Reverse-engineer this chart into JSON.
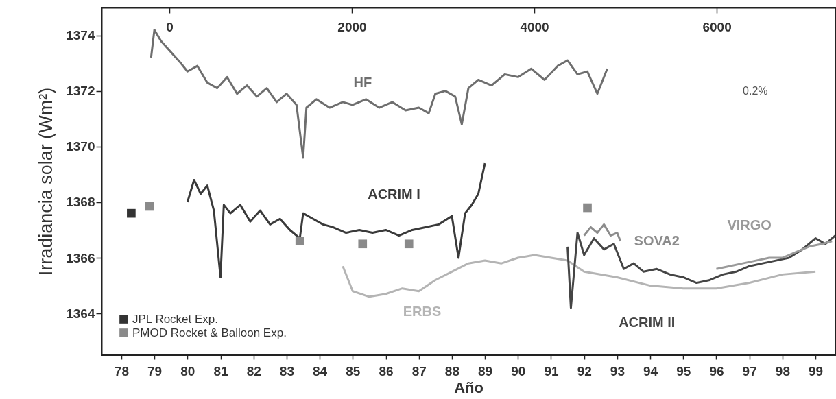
{
  "chart_data": {
    "type": "line",
    "xlabel": "Año",
    "ylabel": "Irradiancia solar (Wm²)",
    "xlim": [
      77.4,
      99.6
    ],
    "xticks": [
      78,
      79,
      80,
      81,
      82,
      83,
      84,
      85,
      86,
      87,
      88,
      89,
      90,
      91,
      92,
      93,
      94,
      95,
      96,
      97,
      98,
      99
    ],
    "x2lim": [
      -744,
      7300
    ],
    "x2ticks": [
      0,
      2000,
      4000,
      6000
    ],
    "ylim": [
      1362.5,
      1375
    ],
    "yticks": [
      1364,
      1366,
      1368,
      1370,
      1372,
      1374
    ],
    "grid": false,
    "legend": "bottom left",
    "line_style": "solid",
    "annotations": [
      "0.2%"
    ],
    "series": [
      {
        "name": "HF",
        "color": "#6e6e6e",
        "x": [
          78.9,
          79.0,
          79.2,
          79.5,
          79.8,
          80.0,
          80.3,
          80.6,
          80.9,
          81.2,
          81.5,
          81.8,
          82.1,
          82.4,
          82.7,
          83.0,
          83.3,
          83.5,
          83.6,
          83.9,
          84.3,
          84.7,
          85.0,
          85.4,
          85.8,
          86.2,
          86.6,
          87.0,
          87.3,
          87.5,
          87.8,
          88.1,
          88.3,
          88.5,
          88.8,
          89.2,
          89.6,
          90.0,
          90.4,
          90.8,
          91.2,
          91.5,
          91.8,
          92.1,
          92.4,
          92.7
        ],
        "values": [
          1373.2,
          1374.2,
          1373.8,
          1373.4,
          1373.0,
          1372.7,
          1372.9,
          1372.3,
          1372.1,
          1372.5,
          1371.9,
          1372.2,
          1371.8,
          1372.1,
          1371.6,
          1371.9,
          1371.5,
          1369.6,
          1371.4,
          1371.7,
          1371.4,
          1371.6,
          1371.5,
          1371.7,
          1371.4,
          1371.6,
          1371.3,
          1371.4,
          1371.2,
          1371.9,
          1372.0,
          1371.8,
          1370.8,
          1372.1,
          1372.4,
          1372.2,
          1372.6,
          1372.5,
          1372.8,
          1372.4,
          1372.9,
          1373.1,
          1372.6,
          1372.7,
          1371.9,
          1372.8
        ]
      },
      {
        "name": "ACRIM I",
        "color": "#3a3a3a",
        "x": [
          80.0,
          80.2,
          80.4,
          80.6,
          80.8,
          81.0,
          81.1,
          81.3,
          81.6,
          81.9,
          82.2,
          82.5,
          82.8,
          83.1,
          83.4,
          83.5,
          83.8,
          84.1,
          84.4,
          84.8,
          85.2,
          85.6,
          86.0,
          86.4,
          86.8,
          87.2,
          87.6,
          88.0,
          88.2,
          88.4,
          88.6,
          88.8,
          89.0
        ],
        "values": [
          1368.0,
          1368.8,
          1368.3,
          1368.6,
          1367.7,
          1365.3,
          1367.9,
          1367.6,
          1367.9,
          1367.3,
          1367.7,
          1367.2,
          1367.4,
          1367.0,
          1366.7,
          1367.6,
          1367.4,
          1367.2,
          1367.1,
          1366.9,
          1367.0,
          1366.9,
          1367.0,
          1366.8,
          1367.0,
          1367.1,
          1367.2,
          1367.5,
          1366.0,
          1367.6,
          1367.9,
          1368.3,
          1369.4
        ]
      },
      {
        "name": "ERBS",
        "color": "#b4b4b4",
        "x": [
          84.7,
          85.0,
          85.5,
          86.0,
          86.5,
          87.0,
          87.5,
          88.0,
          88.5,
          89.0,
          89.5,
          90.0,
          90.5,
          91.0,
          91.5,
          92.0,
          93.0,
          94.0,
          95.0,
          96.0,
          97.0,
          98.0,
          99.0
        ],
        "values": [
          1365.7,
          1364.8,
          1364.6,
          1364.7,
          1364.9,
          1364.8,
          1365.2,
          1365.5,
          1365.8,
          1365.9,
          1365.8,
          1366.0,
          1366.1,
          1366.0,
          1365.9,
          1365.5,
          1365.3,
          1365.0,
          1364.9,
          1364.9,
          1365.1,
          1365.4,
          1365.5
        ]
      },
      {
        "name": "ACRIM II",
        "color": "#454545",
        "x": [
          91.5,
          91.6,
          91.8,
          92.0,
          92.3,
          92.6,
          92.9,
          93.2,
          93.5,
          93.8,
          94.2,
          94.6,
          95.0,
          95.4,
          95.8,
          96.2,
          96.6,
          97.0,
          97.4,
          97.8,
          98.2,
          98.6,
          99.0,
          99.3,
          99.6
        ],
        "values": [
          1366.4,
          1364.2,
          1366.9,
          1366.1,
          1366.7,
          1366.3,
          1366.5,
          1365.6,
          1365.8,
          1365.5,
          1365.6,
          1365.4,
          1365.3,
          1365.1,
          1365.2,
          1365.4,
          1365.5,
          1365.7,
          1365.8,
          1365.9,
          1366.0,
          1366.3,
          1366.7,
          1366.5,
          1366.8
        ]
      },
      {
        "name": "SOVA2",
        "color": "#8c8c8c",
        "x": [
          92.0,
          92.2,
          92.4,
          92.6,
          92.8,
          93.0,
          93.1
        ],
        "values": [
          1366.8,
          1367.1,
          1366.9,
          1367.2,
          1366.8,
          1366.9,
          1366.6
        ]
      },
      {
        "name": "VIRGO",
        "color": "#9a9a9a",
        "x": [
          96.0,
          96.4,
          96.8,
          97.2,
          97.6,
          98.0,
          98.4,
          98.8,
          99.2,
          99.5
        ],
        "values": [
          1365.6,
          1365.7,
          1365.8,
          1365.9,
          1366.0,
          1366.0,
          1366.2,
          1366.4,
          1366.5,
          1366.6
        ]
      },
      {
        "name": "JPL Rocket Exp.",
        "type": "scatter",
        "marker": "square",
        "color": "#333333",
        "x": [
          78.3
        ],
        "values": [
          1367.6
        ]
      },
      {
        "name": "PMOD Rocket & Balloon Exp.",
        "type": "scatter",
        "marker": "square",
        "color": "#8a8a8a",
        "x": [
          78.85,
          83.4,
          85.3,
          86.7,
          92.1
        ],
        "values": [
          1367.85,
          1366.6,
          1366.5,
          1366.5,
          1367.8
        ]
      }
    ]
  }
}
